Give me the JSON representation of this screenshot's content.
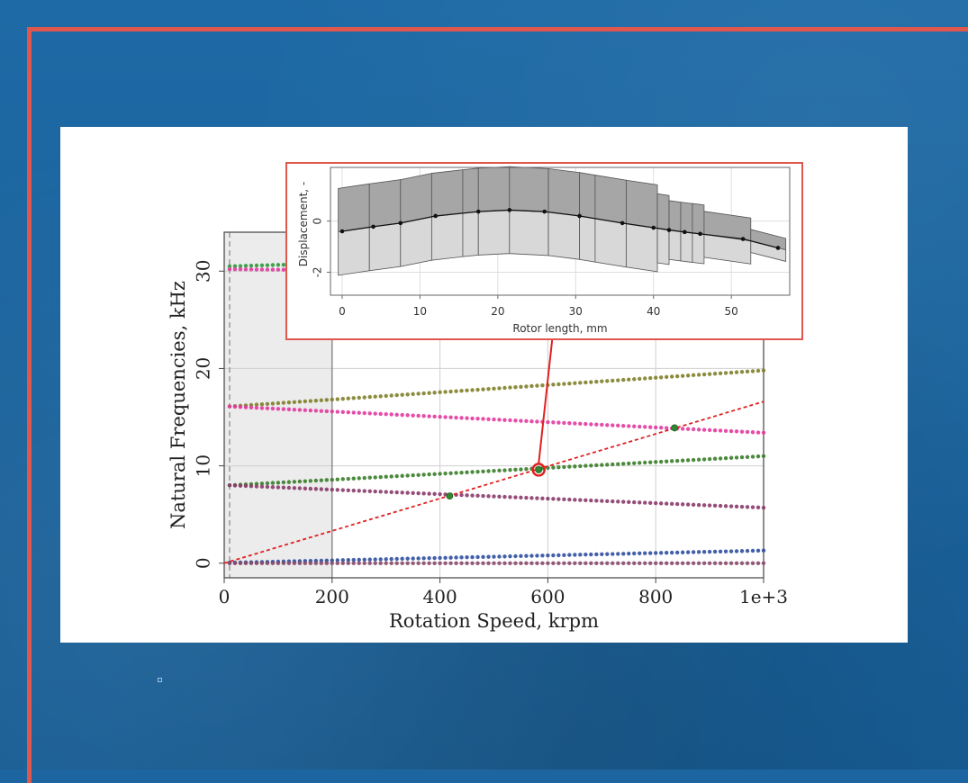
{
  "colors": {
    "background": "#1c65a0",
    "frame": "#e0574d",
    "callout": "#e02020"
  },
  "chart_data": [
    {
      "type": "scatter",
      "title": "",
      "xlabel": "Rotation Speed, krpm",
      "ylabel": "Natural Frequencies, kHz",
      "xlim": [
        0,
        1000
      ],
      "ylim": [
        -1.5,
        34
      ],
      "x_ticks": [
        "0",
        "200",
        "400",
        "600",
        "800",
        "1e+3"
      ],
      "y_ticks": [
        "0",
        "10",
        "20",
        "30"
      ],
      "grid": true,
      "shaded_region": [
        0,
        200
      ],
      "reference_line_x": 10,
      "series": [
        {
          "color": "#2f9a3c",
          "x": [
            10,
            200
          ],
          "y": [
            30.5,
            30.8
          ]
        },
        {
          "color": "#e23a9e",
          "x": [
            10,
            200
          ],
          "y": [
            30.2,
            30.1
          ]
        },
        {
          "color": "#7f7f2a",
          "x": [
            10,
            1000
          ],
          "y": [
            16.1,
            19.8
          ]
        },
        {
          "color": "#e23a9e",
          "x": [
            10,
            1000
          ],
          "y": [
            16.1,
            13.4
          ]
        },
        {
          "color": "#3a7d2a",
          "x": [
            10,
            1000
          ],
          "y": [
            8.0,
            11.0
          ]
        },
        {
          "color": "#8a3a6a",
          "x": [
            10,
            1000
          ],
          "y": [
            8.0,
            5.7
          ]
        },
        {
          "color": "#2f4fa0",
          "x": [
            10,
            1000
          ],
          "y": [
            0.05,
            1.3
          ]
        },
        {
          "color": "#8a4a6a",
          "x": [
            10,
            1000
          ],
          "y": [
            0.0,
            0.0
          ]
        }
      ],
      "excitation_line": {
        "x": [
          0,
          1000
        ],
        "y": [
          0,
          16.6
        ]
      },
      "intersections": [
        {
          "x": 418,
          "y": 6.9
        },
        {
          "x": 583,
          "y": 9.6
        },
        {
          "x": 835,
          "y": 13.9
        }
      ],
      "highlight": {
        "x": 583,
        "y": 9.6
      }
    },
    {
      "type": "line",
      "title": "",
      "xlabel": "Rotor length, mm",
      "ylabel": "Displacement, -",
      "xlim": [
        -1.5,
        57.5
      ],
      "ylim": [
        -2.9,
        2.1
      ],
      "x_ticks": [
        "0",
        "10",
        "20",
        "30",
        "40",
        "50"
      ],
      "y_ticks": [
        "-2",
        "0"
      ],
      "grid": true,
      "mode_shape": {
        "x": [
          0,
          4,
          7.5,
          12,
          17.5,
          21.5,
          26,
          30.5,
          36,
          40,
          42,
          44,
          46,
          51.5,
          56
        ],
        "y": [
          -0.4,
          -0.22,
          -0.08,
          0.2,
          0.37,
          0.43,
          0.37,
          0.2,
          -0.08,
          -0.26,
          -0.35,
          -0.43,
          -0.5,
          -0.7,
          -1.05
        ]
      },
      "segment_boundaries": [
        -0.5,
        3.5,
        7.5,
        11.5,
        15.5,
        17.5,
        21.5,
        26.5,
        30.5,
        32.5,
        36.5,
        40.5,
        42.0,
        43.5,
        45.0,
        46.5,
        52.5,
        57.0
      ]
    }
  ]
}
